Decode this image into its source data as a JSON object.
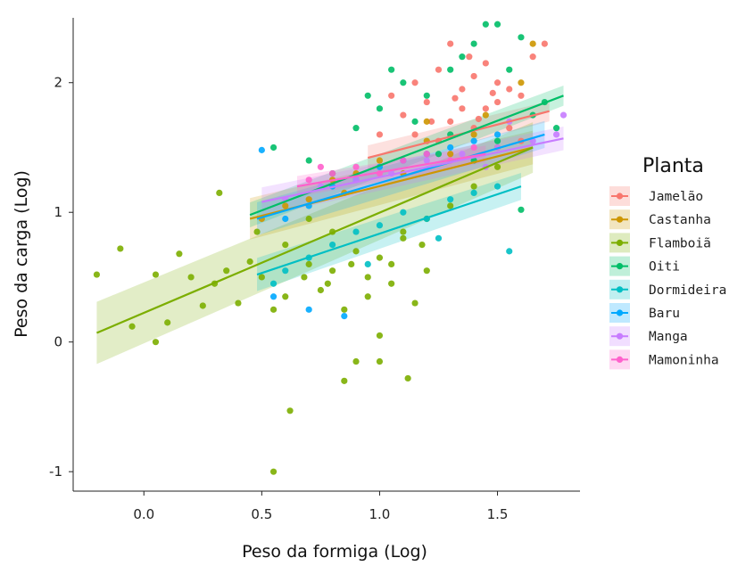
{
  "chart_data": {
    "type": "scatter",
    "xlabel": "Peso da formiga (Log)",
    "ylabel": "Peso da carga (Log)",
    "xlim": [
      -0.3,
      1.85
    ],
    "ylim": [
      -1.15,
      2.5
    ],
    "x_ticks": [
      0.0,
      0.5,
      1.0,
      1.5
    ],
    "x_tick_labels": [
      "0.0",
      "0.5",
      "1.0",
      "1.5"
    ],
    "y_ticks": [
      -1,
      0,
      1,
      2
    ],
    "y_tick_labels": [
      "-1",
      "0",
      "1",
      "2"
    ],
    "grid": false,
    "legend": {
      "title": "Planta",
      "placement": "right"
    },
    "series": [
      {
        "name": "Jamelão",
        "color": "#F8766D",
        "fit": {
          "x": [
            0.95,
            1.72
          ],
          "y": [
            1.42,
            1.78
          ],
          "se": 0.06
        },
        "points": [
          [
            1.05,
            1.9
          ],
          [
            1.1,
            1.75
          ],
          [
            1.15,
            1.6
          ],
          [
            1.2,
            1.85
          ],
          [
            1.25,
            2.1
          ],
          [
            1.3,
            1.7
          ],
          [
            1.35,
            1.95
          ],
          [
            1.4,
            2.05
          ],
          [
            1.45,
            1.8
          ],
          [
            1.5,
            2.0
          ],
          [
            1.55,
            1.65
          ],
          [
            1.6,
            1.9
          ],
          [
            1.15,
            2.0
          ],
          [
            1.25,
            1.55
          ],
          [
            1.35,
            1.8
          ],
          [
            1.45,
            2.15
          ],
          [
            1.55,
            1.95
          ],
          [
            1.65,
            2.2
          ],
          [
            1.2,
            1.45
          ],
          [
            1.3,
            2.3
          ],
          [
            1.4,
            1.65
          ],
          [
            1.5,
            1.85
          ],
          [
            1.6,
            1.55
          ],
          [
            1.0,
            1.6
          ],
          [
            1.7,
            2.3
          ],
          [
            1.38,
            2.2
          ],
          [
            1.48,
            1.92
          ],
          [
            1.22,
            1.7
          ],
          [
            1.32,
            1.88
          ],
          [
            1.42,
            1.72
          ]
        ]
      },
      {
        "name": "Castanha",
        "color": "#CD9600",
        "fit": {
          "x": [
            0.45,
            1.65
          ],
          "y": [
            0.95,
            1.5
          ],
          "se": 0.1
        },
        "points": [
          [
            0.5,
            0.95
          ],
          [
            0.6,
            1.05
          ],
          [
            0.7,
            1.1
          ],
          [
            0.8,
            1.25
          ],
          [
            0.9,
            1.3
          ],
          [
            1.0,
            1.4
          ],
          [
            1.1,
            1.3
          ],
          [
            1.2,
            1.55
          ],
          [
            1.3,
            1.45
          ],
          [
            1.4,
            1.6
          ],
          [
            1.5,
            1.5
          ],
          [
            1.6,
            2.0
          ],
          [
            1.65,
            2.3
          ],
          [
            1.2,
            1.7
          ],
          [
            0.85,
            1.15
          ],
          [
            1.45,
            1.75
          ]
        ]
      },
      {
        "name": "Flamboiã",
        "color": "#7CAE00",
        "fit": {
          "x": [
            -0.2,
            1.65
          ],
          "y": [
            0.07,
            1.5
          ],
          "se": 0.15
        },
        "points": [
          [
            -0.2,
            0.52
          ],
          [
            -0.1,
            0.72
          ],
          [
            -0.05,
            0.12
          ],
          [
            0.05,
            0.52
          ],
          [
            0.1,
            0.15
          ],
          [
            0.15,
            0.68
          ],
          [
            0.2,
            0.5
          ],
          [
            0.3,
            0.45
          ],
          [
            0.35,
            0.55
          ],
          [
            0.4,
            0.3
          ],
          [
            0.45,
            0.62
          ],
          [
            0.5,
            0.5
          ],
          [
            0.55,
            0.25
          ],
          [
            0.6,
            0.35
          ],
          [
            0.62,
            -0.53
          ],
          [
            0.55,
            -1.0
          ],
          [
            0.7,
            0.6
          ],
          [
            0.75,
            0.4
          ],
          [
            0.8,
            0.55
          ],
          [
            0.85,
            0.25
          ],
          [
            0.9,
            0.7
          ],
          [
            0.95,
            0.5
          ],
          [
            1.0,
            0.65
          ],
          [
            1.05,
            0.45
          ],
          [
            1.1,
            0.8
          ],
          [
            1.15,
            0.3
          ],
          [
            1.2,
            0.55
          ],
          [
            0.9,
            -0.15
          ],
          [
            1.0,
            0.05
          ],
          [
            0.85,
            -0.3
          ],
          [
            1.0,
            -0.15
          ],
          [
            1.1,
            0.85
          ],
          [
            1.2,
            0.95
          ],
          [
            1.3,
            1.05
          ],
          [
            1.4,
            1.2
          ],
          [
            1.5,
            1.35
          ],
          [
            0.8,
            0.85
          ],
          [
            0.7,
            0.95
          ],
          [
            0.6,
            0.75
          ],
          [
            0.95,
            0.35
          ],
          [
            1.05,
            0.6
          ],
          [
            0.88,
            0.6
          ],
          [
            0.78,
            0.45
          ],
          [
            1.12,
            -0.28
          ],
          [
            0.05,
            0.0
          ],
          [
            0.32,
            1.15
          ],
          [
            0.25,
            0.28
          ],
          [
            0.48,
            0.85
          ],
          [
            0.68,
            0.5
          ],
          [
            1.18,
            0.75
          ]
        ]
      },
      {
        "name": "Oiti",
        "color": "#00BE67",
        "fit": {
          "x": [
            0.45,
            1.78
          ],
          "y": [
            0.98,
            1.9
          ],
          "se": 0.06
        },
        "points": [
          [
            0.55,
            1.5
          ],
          [
            0.7,
            1.4
          ],
          [
            0.8,
            1.3
          ],
          [
            0.9,
            1.65
          ],
          [
            1.0,
            1.8
          ],
          [
            1.1,
            2.0
          ],
          [
            1.2,
            1.9
          ],
          [
            1.3,
            2.1
          ],
          [
            1.4,
            2.3
          ],
          [
            1.45,
            2.45
          ],
          [
            1.5,
            2.45
          ],
          [
            1.6,
            2.35
          ],
          [
            1.7,
            1.85
          ],
          [
            1.75,
            1.65
          ],
          [
            1.55,
            2.1
          ],
          [
            1.35,
            2.2
          ],
          [
            1.25,
            1.45
          ],
          [
            1.15,
            1.7
          ],
          [
            1.05,
            2.1
          ],
          [
            0.95,
            1.9
          ],
          [
            1.65,
            1.75
          ],
          [
            1.5,
            1.55
          ],
          [
            1.4,
            1.4
          ],
          [
            1.6,
            1.02
          ],
          [
            1.3,
            1.6
          ]
        ]
      },
      {
        "name": "Dormideira",
        "color": "#00BFC4",
        "fit": {
          "x": [
            0.48,
            1.6
          ],
          "y": [
            0.52,
            1.2
          ],
          "se": 0.08
        },
        "points": [
          [
            0.6,
            0.55
          ],
          [
            0.7,
            0.65
          ],
          [
            0.8,
            0.75
          ],
          [
            0.9,
            0.85
          ],
          [
            1.0,
            0.9
          ],
          [
            1.1,
            1.0
          ],
          [
            1.2,
            0.95
          ],
          [
            1.3,
            1.1
          ],
          [
            1.4,
            1.15
          ],
          [
            1.5,
            1.2
          ],
          [
            1.55,
            0.7
          ],
          [
            0.55,
            0.45
          ],
          [
            0.95,
            0.6
          ],
          [
            1.25,
            0.8
          ]
        ]
      },
      {
        "name": "Baru",
        "color": "#00A9FF",
        "fit": {
          "x": [
            0.48,
            1.7
          ],
          "y": [
            0.95,
            1.6
          ],
          "se": 0.08
        },
        "points": [
          [
            0.5,
            1.48
          ],
          [
            0.6,
            0.95
          ],
          [
            0.7,
            1.05
          ],
          [
            0.8,
            1.2
          ],
          [
            0.9,
            1.25
          ],
          [
            1.0,
            1.35
          ],
          [
            1.1,
            1.4
          ],
          [
            1.2,
            1.45
          ],
          [
            1.3,
            1.5
          ],
          [
            1.4,
            1.55
          ],
          [
            1.5,
            1.6
          ],
          [
            0.7,
            0.25
          ],
          [
            0.55,
            0.35
          ],
          [
            0.85,
            0.2
          ]
        ]
      },
      {
        "name": "Manga",
        "color": "#C77CFF",
        "fit": {
          "x": [
            0.5,
            1.78
          ],
          "y": [
            1.08,
            1.57
          ],
          "se": 0.07
        },
        "points": [
          [
            0.6,
            1.1
          ],
          [
            0.75,
            1.2
          ],
          [
            0.9,
            1.25
          ],
          [
            1.05,
            1.3
          ],
          [
            1.2,
            1.4
          ],
          [
            1.35,
            1.45
          ],
          [
            1.5,
            1.5
          ],
          [
            1.65,
            1.55
          ],
          [
            1.78,
            1.75
          ],
          [
            1.75,
            1.6
          ],
          [
            1.55,
            1.7
          ],
          [
            1.45,
            1.35
          ]
        ]
      },
      {
        "name": "Mamoninha",
        "color": "#FF61CC",
        "fit": {
          "x": [
            0.65,
            1.45
          ],
          "y": [
            1.2,
            1.45
          ],
          "se": 0.05
        },
        "points": [
          [
            0.7,
            1.25
          ],
          [
            0.8,
            1.3
          ],
          [
            0.9,
            1.35
          ],
          [
            1.0,
            1.3
          ],
          [
            1.1,
            1.4
          ],
          [
            1.2,
            1.45
          ],
          [
            1.3,
            1.4
          ],
          [
            1.4,
            1.5
          ],
          [
            0.75,
            1.35
          ]
        ]
      }
    ]
  }
}
